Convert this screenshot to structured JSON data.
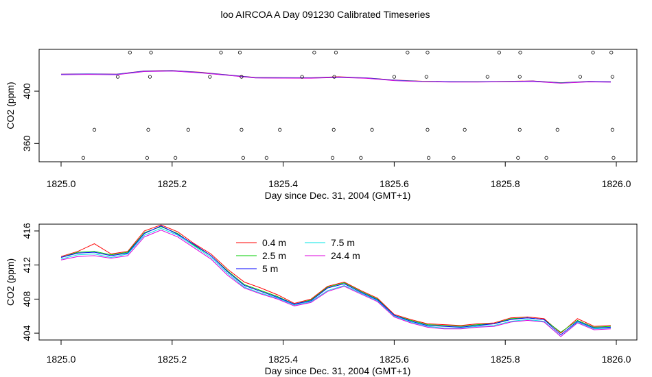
{
  "page_title": "loo AIRCOA A  Day 091230  Calibrated Timeseries",
  "colors": {
    "0.4 m": "#ff0000",
    "2.5 m": "#00cc00",
    "5 m": "#0000ff",
    "7.5 m": "#00e5e5",
    "24.4 m": "#dd00dd"
  },
  "chart_data": [
    {
      "type": "line",
      "title": "",
      "xlabel": "Day since Dec. 31, 2004 (GMT+1)",
      "ylabel": "CO2 (ppm)",
      "xlim": [
        1825.0,
        1826.0
      ],
      "ylim": [
        346,
        432
      ],
      "xticks": [
        1825.0,
        1825.2,
        1825.4,
        1825.6,
        1825.8,
        1826.0
      ],
      "xtick_labels": [
        "1825.0",
        "1825.2",
        "1825.4",
        "1825.6",
        "1825.8",
        "1826.0"
      ],
      "yticks": [
        360,
        400
      ],
      "ytick_labels": [
        "360",
        "400"
      ],
      "grid": false,
      "series": [
        {
          "name": "0.4 m",
          "x": [
            1825.0,
            1825.05,
            1825.1,
            1825.15,
            1825.2,
            1825.25,
            1825.3,
            1825.35,
            1825.4,
            1825.45,
            1825.5,
            1825.55,
            1825.6,
            1825.65,
            1825.7,
            1825.75,
            1825.8,
            1825.85,
            1825.9,
            1825.95,
            1825.99
          ],
          "y": [
            413,
            413.2,
            413,
            415.5,
            415.8,
            414.5,
            412.5,
            410.5,
            410.4,
            410.3,
            411,
            410.2,
            408.5,
            407.6,
            407.3,
            407.3,
            407.5,
            407.8,
            406.5,
            407.5,
            407.2
          ]
        },
        {
          "name": "2.5 m",
          "x": [
            1825.0,
            1825.05,
            1825.1,
            1825.15,
            1825.2,
            1825.25,
            1825.3,
            1825.35,
            1825.4,
            1825.45,
            1825.5,
            1825.55,
            1825.6,
            1825.65,
            1825.7,
            1825.75,
            1825.8,
            1825.85,
            1825.9,
            1825.95,
            1825.99
          ],
          "y": [
            412.8,
            413,
            412.8,
            415.2,
            415.6,
            414.2,
            412.3,
            410.3,
            410.2,
            410.1,
            410.7,
            410,
            408.3,
            407.5,
            407.2,
            407.2,
            407.4,
            407.6,
            406.4,
            407.3,
            407.1
          ]
        },
        {
          "name": "5 m",
          "x": [
            1825.0,
            1825.05,
            1825.1,
            1825.15,
            1825.2,
            1825.25,
            1825.3,
            1825.35,
            1825.4,
            1825.45,
            1825.5,
            1825.55,
            1825.6,
            1825.65,
            1825.7,
            1825.75,
            1825.8,
            1825.85,
            1825.9,
            1825.95,
            1825.99
          ],
          "y": [
            412.9,
            413.1,
            412.9,
            415.3,
            415.7,
            414.3,
            412.4,
            410.4,
            410.3,
            410.2,
            410.8,
            410.1,
            408.4,
            407.5,
            407.3,
            407.2,
            407.4,
            407.7,
            406.3,
            407.4,
            407.2
          ]
        },
        {
          "name": "7.5 m",
          "x": [
            1825.0,
            1825.05,
            1825.1,
            1825.15,
            1825.2,
            1825.25,
            1825.3,
            1825.35,
            1825.4,
            1825.45,
            1825.5,
            1825.55,
            1825.6,
            1825.65,
            1825.7,
            1825.75,
            1825.8,
            1825.85,
            1825.9,
            1825.95,
            1825.99
          ],
          "y": [
            412.7,
            412.9,
            412.7,
            415.1,
            415.5,
            414.1,
            412.2,
            410.2,
            410.1,
            410,
            410.6,
            409.9,
            408.2,
            407.4,
            407.1,
            407.1,
            407.3,
            407.5,
            406.2,
            407.2,
            407
          ]
        },
        {
          "name": "24.4 m",
          "x": [
            1825.0,
            1825.05,
            1825.1,
            1825.15,
            1825.2,
            1825.25,
            1825.3,
            1825.35,
            1825.4,
            1825.45,
            1825.5,
            1825.55,
            1825.6,
            1825.65,
            1825.7,
            1825.75,
            1825.8,
            1825.85,
            1825.9,
            1825.95,
            1825.99
          ],
          "y": [
            412.6,
            412.8,
            412.6,
            415,
            415.4,
            414,
            412.1,
            410.1,
            410,
            409.9,
            410.5,
            409.8,
            408.1,
            407.3,
            407,
            407,
            407.2,
            407.4,
            406.1,
            407.1,
            406.9
          ]
        }
      ],
      "points_y": [
        {
          "x": [
            1825.124,
            1825.162,
            1825.288,
            1825.322,
            1825.456,
            1825.495,
            1825.624,
            1825.66,
            1825.789,
            1825.827,
            1825.958,
            1825.991
          ],
          "y": [
            429.5,
            429.5,
            429.5,
            429.5,
            429.5,
            429.5,
            429.5,
            429.5,
            429.5,
            429.5,
            429.5,
            429.5
          ]
        },
        {
          "x": [
            1825.102,
            1825.16,
            1825.268,
            1825.325,
            1825.434,
            1825.492,
            1825.6,
            1825.658,
            1825.768,
            1825.826,
            1825.935,
            1825.993
          ],
          "y": [
            411,
            411,
            411,
            411,
            411,
            411,
            411,
            411,
            411,
            411,
            411,
            411
          ]
        },
        {
          "x": [
            1825.06,
            1825.157,
            1825.229,
            1825.325,
            1825.394,
            1825.491,
            1825.56,
            1825.66,
            1825.727,
            1825.826,
            1825.894,
            1825.993
          ],
          "y": [
            370.5,
            370.5,
            370.5,
            370.5,
            370.5,
            370.5,
            370.5,
            370.5,
            370.5,
            370.5,
            370.5,
            370.5
          ]
        },
        {
          "x": [
            1825.04,
            1825.155,
            1825.206,
            1825.328,
            1825.37,
            1825.489,
            1825.54,
            1825.662,
            1825.707,
            1825.823,
            1825.874,
            1825.995
          ],
          "y": [
            349,
            349,
            349,
            349,
            349,
            349,
            349,
            349,
            349,
            349,
            349,
            349
          ]
        }
      ]
    },
    {
      "type": "line",
      "title": "",
      "xlabel": "Day since Dec. 31, 2004 (GMT+1)",
      "ylabel": "CO2 (ppm)",
      "xlim": [
        1825.0,
        1826.0
      ],
      "ylim": [
        403.2,
        416.8
      ],
      "xticks": [
        1825.0,
        1825.2,
        1825.4,
        1825.6,
        1825.8,
        1826.0
      ],
      "xtick_labels": [
        "1825.0",
        "1825.2",
        "1825.4",
        "1825.6",
        "1825.8",
        "1826.0"
      ],
      "yticks": [
        404,
        408,
        412,
        416
      ],
      "ytick_labels": [
        "404",
        "408",
        "412",
        "416"
      ],
      "grid": false,
      "legend": {
        "placement": "top-center",
        "columns": 2,
        "entries": [
          "0.4 m",
          "2.5 m",
          "5 m",
          "7.5 m",
          "24.4 m"
        ]
      },
      "series": [
        {
          "name": "0.4 m",
          "x": [
            1825.0,
            1825.03,
            1825.06,
            1825.09,
            1825.12,
            1825.15,
            1825.18,
            1825.21,
            1825.24,
            1825.27,
            1825.3,
            1825.33,
            1825.36,
            1825.39,
            1825.42,
            1825.45,
            1825.48,
            1825.51,
            1825.54,
            1825.57,
            1825.6,
            1825.63,
            1825.66,
            1825.69,
            1825.72,
            1825.75,
            1825.78,
            1825.81,
            1825.84,
            1825.87,
            1825.9,
            1825.93,
            1825.96,
            1825.99
          ],
          "y": [
            413,
            413.6,
            414.5,
            413.3,
            413.6,
            416,
            416.7,
            415.9,
            414.5,
            413.3,
            411.5,
            410,
            409.3,
            408.5,
            407.5,
            408,
            409.5,
            410,
            409,
            408.1,
            406.2,
            405.6,
            405.1,
            405,
            404.9,
            405.1,
            405.2,
            405.8,
            405.9,
            405.7,
            404,
            405.7,
            404.8,
            404.9
          ]
        },
        {
          "name": "2.5 m",
          "x": [
            1825.0,
            1825.03,
            1825.06,
            1825.09,
            1825.12,
            1825.15,
            1825.18,
            1825.21,
            1825.24,
            1825.27,
            1825.3,
            1825.33,
            1825.36,
            1825.39,
            1825.42,
            1825.45,
            1825.48,
            1825.51,
            1825.54,
            1825.57,
            1825.6,
            1825.63,
            1825.66,
            1825.69,
            1825.72,
            1825.75,
            1825.78,
            1825.81,
            1825.84,
            1825.87,
            1825.9,
            1825.93,
            1825.96,
            1825.99
          ],
          "y": [
            412.9,
            413.5,
            413.6,
            413.2,
            413.5,
            415.8,
            416.5,
            415.7,
            414.3,
            413.1,
            411.3,
            409.7,
            409,
            408.3,
            407.4,
            407.9,
            409.4,
            409.9,
            408.9,
            408,
            406.1,
            405.5,
            405.0,
            404.9,
            404.8,
            405,
            405.1,
            405.7,
            405.8,
            405.6,
            404.1,
            405.5,
            404.7,
            404.8
          ]
        },
        {
          "name": "5 m",
          "x": [
            1825.0,
            1825.03,
            1825.06,
            1825.09,
            1825.12,
            1825.15,
            1825.18,
            1825.21,
            1825.24,
            1825.27,
            1825.3,
            1825.33,
            1825.36,
            1825.39,
            1825.42,
            1825.45,
            1825.48,
            1825.51,
            1825.54,
            1825.57,
            1825.6,
            1825.63,
            1825.66,
            1825.69,
            1825.72,
            1825.75,
            1825.78,
            1825.81,
            1825.84,
            1825.87,
            1825.9,
            1825.93,
            1825.96,
            1825.99
          ],
          "y": [
            412.9,
            413.4,
            413.5,
            413.1,
            413.4,
            415.7,
            416.6,
            415.6,
            414.4,
            413.1,
            411.2,
            409.6,
            408.9,
            408.2,
            407.4,
            407.8,
            409.3,
            409.8,
            408.8,
            407.9,
            406.1,
            405.4,
            404.9,
            404.8,
            404.7,
            404.9,
            405.1,
            405.6,
            405.8,
            405.6,
            403.8,
            405.4,
            404.6,
            404.7
          ]
        },
        {
          "name": "7.5 m",
          "x": [
            1825.0,
            1825.03,
            1825.06,
            1825.09,
            1825.12,
            1825.15,
            1825.18,
            1825.21,
            1825.24,
            1825.27,
            1825.3,
            1825.33,
            1825.36,
            1825.39,
            1825.42,
            1825.45,
            1825.48,
            1825.51,
            1825.54,
            1825.57,
            1825.6,
            1825.63,
            1825.66,
            1825.69,
            1825.72,
            1825.75,
            1825.78,
            1825.81,
            1825.84,
            1825.87,
            1825.9,
            1825.93,
            1825.96,
            1825.99
          ],
          "y": [
            412.7,
            413.2,
            413.3,
            412.9,
            413.3,
            415.5,
            416.3,
            415.5,
            414.2,
            412.9,
            411,
            409.4,
            408.7,
            408.1,
            407.3,
            407.7,
            409,
            409.6,
            408.7,
            407.8,
            406,
            405.3,
            404.8,
            404.6,
            404.6,
            404.8,
            404.9,
            405.4,
            405.6,
            405.4,
            403.6,
            405.3,
            404.5,
            404.6
          ]
        },
        {
          "name": "24.4 m",
          "x": [
            1825.0,
            1825.03,
            1825.06,
            1825.09,
            1825.12,
            1825.15,
            1825.18,
            1825.21,
            1825.24,
            1825.27,
            1825.3,
            1825.33,
            1825.36,
            1825.39,
            1825.42,
            1825.45,
            1825.48,
            1825.51,
            1825.54,
            1825.57,
            1825.6,
            1825.63,
            1825.66,
            1825.69,
            1825.72,
            1825.75,
            1825.78,
            1825.81,
            1825.84,
            1825.87,
            1825.9,
            1825.93,
            1825.96,
            1825.99
          ],
          "y": [
            412.6,
            413,
            413.1,
            412.8,
            413.1,
            415.3,
            416.1,
            415.3,
            414,
            412.7,
            410.8,
            409.3,
            408.6,
            408,
            407.2,
            407.6,
            408.9,
            409.5,
            408.6,
            407.7,
            405.9,
            405.2,
            404.7,
            404.5,
            404.5,
            404.7,
            404.8,
            405.3,
            405.5,
            405.3,
            403.6,
            405.2,
            404.4,
            404.5
          ]
        }
      ]
    }
  ]
}
